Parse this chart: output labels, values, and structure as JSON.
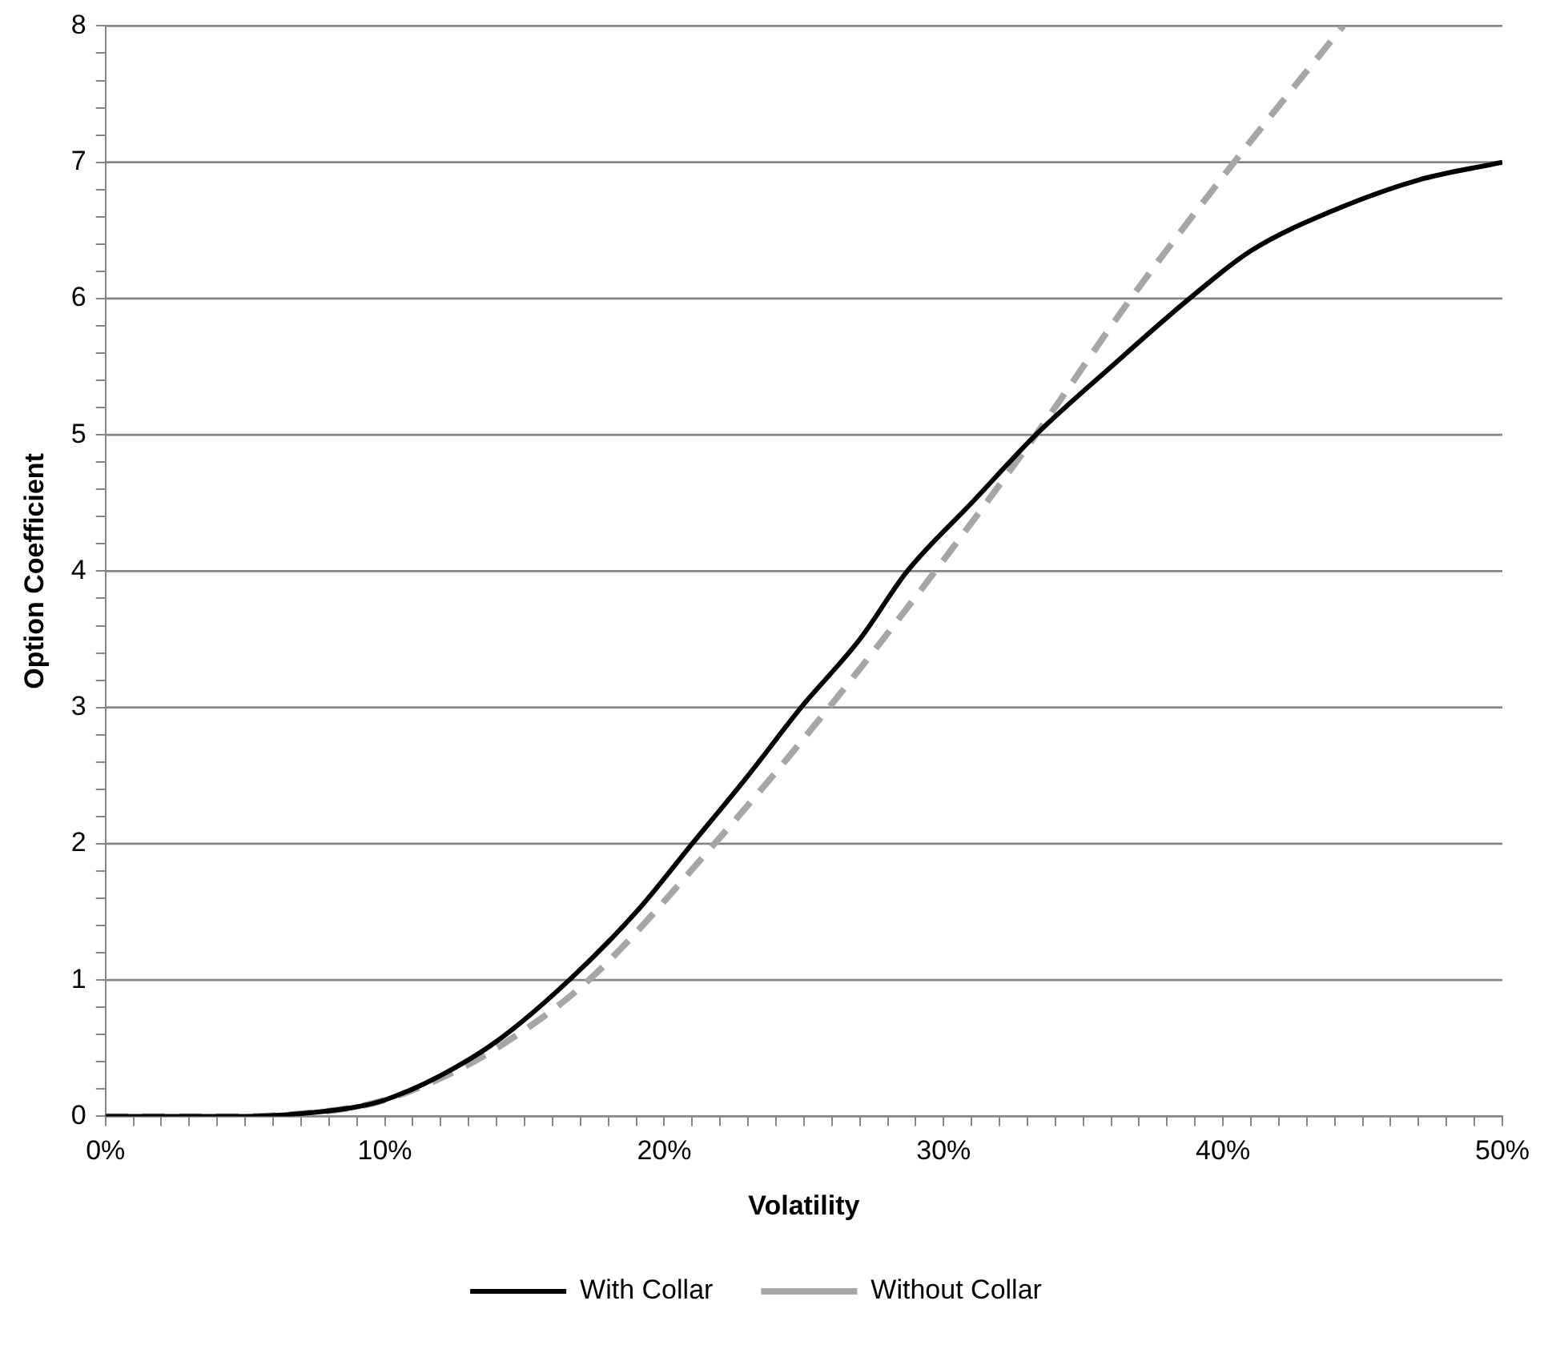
{
  "chart_data": {
    "type": "line",
    "xlabel": "Volatility",
    "ylabel": "Option Coefficient",
    "xlim": [
      0,
      50
    ],
    "ylim": [
      0,
      8
    ],
    "xticks": [
      {
        "value": 0,
        "label": "0%"
      },
      {
        "value": 1,
        "label": null
      },
      {
        "value": 2,
        "label": null
      },
      {
        "value": 3,
        "label": null
      },
      {
        "value": 4,
        "label": null
      },
      {
        "value": 5,
        "label": null
      },
      {
        "value": 6,
        "label": null
      },
      {
        "value": 7,
        "label": null
      },
      {
        "value": 8,
        "label": null
      },
      {
        "value": 9,
        "label": null
      },
      {
        "value": 10,
        "label": "10%"
      },
      {
        "value": 11,
        "label": null
      },
      {
        "value": 12,
        "label": null
      },
      {
        "value": 13,
        "label": null
      },
      {
        "value": 14,
        "label": null
      },
      {
        "value": 15,
        "label": null
      },
      {
        "value": 16,
        "label": null
      },
      {
        "value": 17,
        "label": null
      },
      {
        "value": 18,
        "label": null
      },
      {
        "value": 19,
        "label": null
      },
      {
        "value": 20,
        "label": "20%"
      },
      {
        "value": 21,
        "label": null
      },
      {
        "value": 22,
        "label": null
      },
      {
        "value": 23,
        "label": null
      },
      {
        "value": 24,
        "label": null
      },
      {
        "value": 25,
        "label": null
      },
      {
        "value": 26,
        "label": null
      },
      {
        "value": 27,
        "label": null
      },
      {
        "value": 28,
        "label": null
      },
      {
        "value": 29,
        "label": null
      },
      {
        "value": 30,
        "label": "30%"
      },
      {
        "value": 31,
        "label": null
      },
      {
        "value": 32,
        "label": null
      },
      {
        "value": 33,
        "label": null
      },
      {
        "value": 34,
        "label": null
      },
      {
        "value": 35,
        "label": null
      },
      {
        "value": 36,
        "label": null
      },
      {
        "value": 37,
        "label": null
      },
      {
        "value": 38,
        "label": null
      },
      {
        "value": 39,
        "label": null
      },
      {
        "value": 40,
        "label": "40%"
      },
      {
        "value": 41,
        "label": null
      },
      {
        "value": 42,
        "label": null
      },
      {
        "value": 43,
        "label": null
      },
      {
        "value": 44,
        "label": null
      },
      {
        "value": 45,
        "label": null
      },
      {
        "value": 46,
        "label": null
      },
      {
        "value": 47,
        "label": null
      },
      {
        "value": 48,
        "label": null
      },
      {
        "value": 49,
        "label": null
      },
      {
        "value": 50,
        "label": "50%"
      }
    ],
    "yticks": [
      0,
      {
        "value": 0.2,
        "label": null
      },
      {
        "value": 0.4,
        "label": null
      },
      {
        "value": 0.6,
        "label": null
      },
      {
        "value": 0.8,
        "label": null
      },
      1,
      {
        "value": 1.2,
        "label": null
      },
      {
        "value": 1.4,
        "label": null
      },
      {
        "value": 1.6,
        "label": null
      },
      {
        "value": 1.8,
        "label": null
      },
      2,
      {
        "value": 2.2,
        "label": null
      },
      {
        "value": 2.4,
        "label": null
      },
      {
        "value": 2.6,
        "label": null
      },
      {
        "value": 2.8,
        "label": null
      },
      3,
      {
        "value": 3.2,
        "label": null
      },
      {
        "value": 3.4,
        "label": null
      },
      {
        "value": 3.6,
        "label": null
      },
      {
        "value": 3.8,
        "label": null
      },
      4,
      {
        "value": 4.2,
        "label": null
      },
      {
        "value": 4.4,
        "label": null
      },
      {
        "value": 4.6,
        "label": null
      },
      {
        "value": 4.8,
        "label": null
      },
      5,
      {
        "value": 5.2,
        "label": null
      },
      {
        "value": 5.4,
        "label": null
      },
      {
        "value": 5.6,
        "label": null
      },
      {
        "value": 5.8,
        "label": null
      },
      6,
      {
        "value": 6.2,
        "label": null
      },
      {
        "value": 6.4,
        "label": null
      },
      {
        "value": 6.6,
        "label": null
      },
      {
        "value": 6.8,
        "label": null
      },
      7,
      {
        "value": 7.2,
        "label": null
      },
      {
        "value": 7.4,
        "label": null
      },
      {
        "value": 7.6,
        "label": null
      },
      {
        "value": 7.8,
        "label": null
      },
      8
    ],
    "grid": "y",
    "legend": "bottom",
    "marker": "none",
    "series": [
      {
        "name": "With Collar",
        "color": "#000000",
        "line_style": "solid",
        "x": [
          0,
          5,
          7,
          9,
          10,
          12,
          14,
          16.6,
          19,
          21,
          23,
          24.9,
          27,
          28.7,
          31,
          33.3,
          36,
          38.8,
          41,
          44,
          47,
          50
        ],
        "values": [
          0,
          0,
          0.02,
          0.07,
          0.12,
          0.3,
          0.55,
          1,
          1.5,
          2,
          2.5,
          3,
          3.5,
          4,
          4.5,
          5,
          5.5,
          6,
          6.35,
          6.65,
          6.87,
          7
        ]
      },
      {
        "name": "Without Collar",
        "color": "#a6a6a6",
        "line_style": "dashed",
        "x": [
          0,
          5,
          7,
          9,
          10,
          12,
          14,
          17.3,
          21.8,
          25.9,
          29.7,
          33.3,
          36.7,
          40.4,
          44.3
        ],
        "values": [
          0,
          0,
          0.02,
          0.07,
          0.12,
          0.28,
          0.5,
          1,
          2,
          3,
          4,
          5,
          6,
          7,
          8
        ]
      }
    ]
  }
}
